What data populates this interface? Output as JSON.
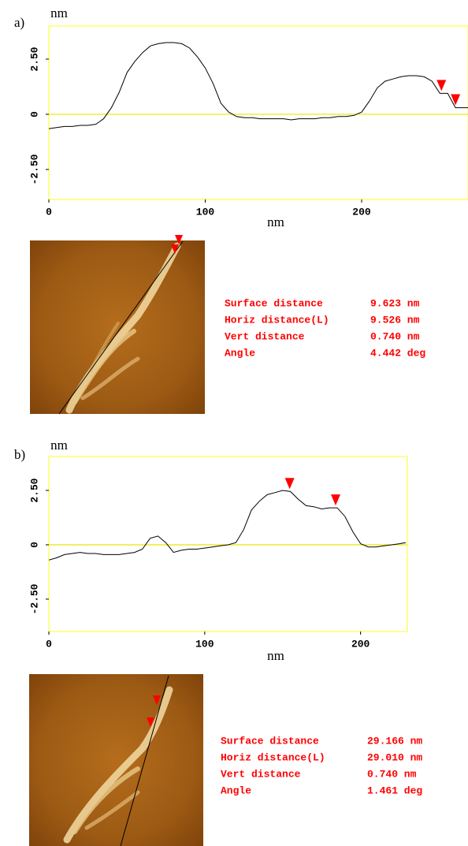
{
  "chart_data": [
    {
      "type": "line",
      "panel_label": "a)",
      "x_label": "nm",
      "y_label": "nm",
      "xlim": [
        0,
        268
      ],
      "ylim": [
        -3.86,
        4.0
      ],
      "xticks": [
        0,
        100,
        200
      ],
      "yticks": [
        {
          "value": 2.5,
          "label": "2.50"
        },
        0,
        {
          "value": -2.5,
          "label": "-2.50"
        }
      ],
      "frame_color": "#ffff66",
      "zero_line_color": "#e8e800",
      "x": [
        0,
        5,
        10,
        15,
        20,
        25,
        30,
        35,
        40,
        45,
        50,
        55,
        60,
        65,
        70,
        75,
        80,
        85,
        90,
        95,
        100,
        105,
        110,
        115,
        120,
        125,
        130,
        135,
        140,
        145,
        150,
        155,
        160,
        165,
        170,
        175,
        180,
        185,
        190,
        195,
        200,
        205,
        210,
        215,
        220,
        225,
        230,
        235,
        240,
        245,
        250,
        255,
        260,
        265,
        268
      ],
      "series": [
        {
          "color": "#000000",
          "values": [
            -0.65,
            -0.6,
            -0.55,
            -0.55,
            -0.5,
            -0.5,
            -0.45,
            -0.2,
            0.3,
            1.0,
            1.9,
            2.4,
            2.8,
            3.1,
            3.2,
            3.25,
            3.25,
            3.2,
            3.0,
            2.6,
            2.1,
            1.4,
            0.5,
            0.1,
            -0.1,
            -0.15,
            -0.15,
            -0.2,
            -0.2,
            -0.2,
            -0.2,
            -0.25,
            -0.2,
            -0.2,
            -0.2,
            -0.15,
            -0.15,
            -0.1,
            -0.1,
            -0.05,
            0.1,
            0.6,
            1.2,
            1.5,
            1.6,
            1.7,
            1.75,
            1.75,
            1.7,
            1.5,
            0.95,
            0.95,
            0.3,
            0.3,
            0.3
          ]
        }
      ],
      "markers": {
        "color": "#ff0000",
        "x": [
          251,
          260
        ]
      },
      "measurements": [
        [
          "Surface distance",
          "9.623 nm"
        ],
        [
          "Horiz distance(L)",
          "9.526 nm"
        ],
        [
          "Vert distance",
          "0.740 nm"
        ],
        [
          "Angle",
          "4.442 deg"
        ]
      ]
    },
    {
      "type": "line",
      "panel_label": "b)",
      "x_label": "nm",
      "y_label": "nm",
      "xlim": [
        0,
        230
      ],
      "ylim": [
        -3.99,
        4.06
      ],
      "xticks": [
        0,
        100,
        200
      ],
      "yticks": [
        {
          "value": 2.5,
          "label": "2.50"
        },
        0,
        {
          "value": -2.5,
          "label": "-2.50"
        }
      ],
      "frame_color": "#ffff66",
      "zero_line_color": "#e8e800",
      "x": [
        0,
        5,
        10,
        15,
        20,
        25,
        30,
        35,
        40,
        45,
        50,
        55,
        60,
        65,
        70,
        75,
        80,
        85,
        90,
        95,
        100,
        105,
        110,
        115,
        120,
        125,
        130,
        135,
        140,
        145,
        150,
        155,
        160,
        165,
        170,
        175,
        180,
        185,
        190,
        195,
        200,
        205,
        210,
        215,
        220,
        225,
        229
      ],
      "series": [
        {
          "color": "#000000",
          "values": [
            -0.7,
            -0.6,
            -0.45,
            -0.4,
            -0.35,
            -0.4,
            -0.4,
            -0.45,
            -0.45,
            -0.45,
            -0.4,
            -0.35,
            -0.2,
            0.3,
            0.4,
            0.1,
            -0.35,
            -0.25,
            -0.2,
            -0.2,
            -0.15,
            -0.1,
            -0.05,
            0.0,
            0.1,
            0.7,
            1.6,
            2.0,
            2.3,
            2.4,
            2.5,
            2.45,
            2.1,
            1.8,
            1.75,
            1.65,
            1.7,
            1.7,
            1.3,
            0.6,
            0.05,
            -0.1,
            -0.1,
            -0.05,
            0.0,
            0.05,
            0.1
          ]
        }
      ],
      "markers": {
        "color": "#ff0000",
        "x": [
          154.5,
          184
        ]
      },
      "measurements": [
        [
          "Surface distance",
          "29.166 nm"
        ],
        [
          "Horiz distance(L)",
          "29.010 nm"
        ],
        [
          "Vert distance",
          "0.740 nm"
        ],
        [
          "Angle",
          "1.461 deg"
        ]
      ]
    }
  ]
}
